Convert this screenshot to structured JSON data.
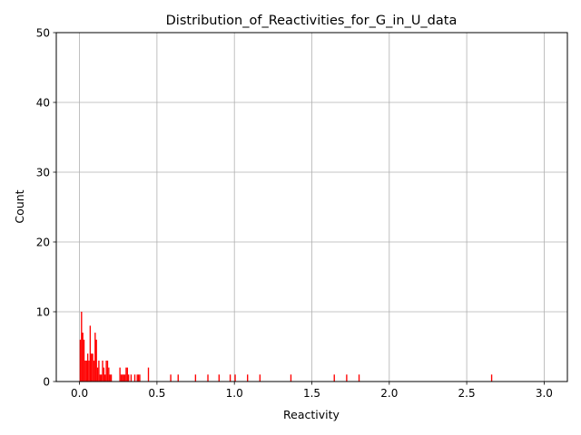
{
  "chart_data": {
    "type": "bar",
    "title": "Distribution_of_Reactivities_for_G_in_U_data",
    "xlabel": "Reactivity",
    "ylabel": "Count",
    "xlim": [
      -0.15,
      3.15
    ],
    "ylim": [
      0,
      50
    ],
    "xticks": [
      "0.0",
      "0.5",
      "1.0",
      "1.5",
      "2.0",
      "2.5",
      "3.0"
    ],
    "yticks": [
      "0",
      "10",
      "20",
      "30",
      "40",
      "50"
    ],
    "grid": true,
    "bar_color": "#ff0000",
    "bin_width": 0.008,
    "series": [
      {
        "x": [
          0.005,
          0.013,
          0.021,
          0.029,
          0.037,
          0.045,
          0.053,
          0.061,
          0.069,
          0.077,
          0.085,
          0.093,
          0.101,
          0.109,
          0.117,
          0.125,
          0.133,
          0.141,
          0.149,
          0.157,
          0.165,
          0.173,
          0.181,
          0.189,
          0.197,
          0.205,
          0.213,
          0.221,
          0.261,
          0.269,
          0.277,
          0.285,
          0.293,
          0.301,
          0.309,
          0.317,
          0.333,
          0.357,
          0.373,
          0.381,
          0.389,
          0.445,
          0.589,
          0.637,
          0.749,
          0.829,
          0.901,
          0.973,
          1.005,
          1.085,
          1.165,
          1.365,
          1.645,
          1.725,
          1.805,
          2.661
        ],
        "values": [
          6,
          10,
          7,
          6,
          3,
          3,
          4,
          3,
          8,
          4,
          4,
          3,
          7,
          6,
          2,
          3,
          1,
          1,
          3,
          2,
          1,
          3,
          3,
          2,
          1,
          1,
          0,
          0,
          2,
          1,
          1,
          1,
          1,
          2,
          2,
          1,
          1,
          1,
          1,
          1,
          1,
          2,
          1,
          1,
          1,
          1,
          1,
          1,
          1,
          1,
          1,
          1,
          1,
          1,
          1,
          1
        ]
      }
    ]
  }
}
